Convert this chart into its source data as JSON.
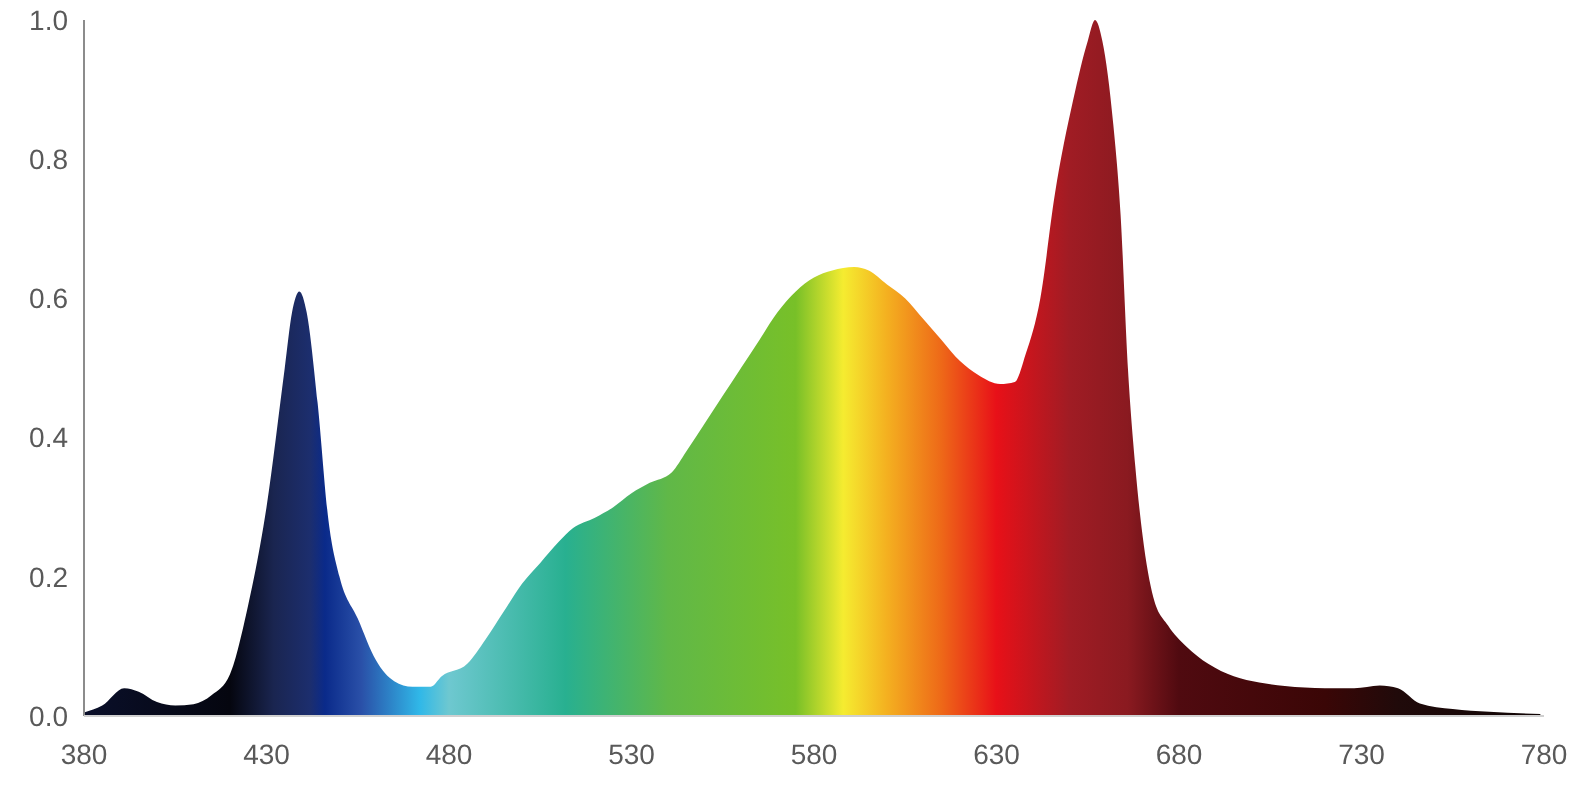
{
  "chart_data": {
    "type": "area",
    "x": [
      380,
      385,
      391,
      395,
      400,
      405,
      410,
      415,
      420,
      425,
      430,
      435,
      437,
      439,
      441,
      444,
      447,
      450,
      455,
      460,
      465,
      470,
      475,
      478,
      485,
      490,
      495,
      500,
      505,
      510,
      514,
      520,
      525,
      530,
      535,
      541,
      545,
      550,
      555,
      560,
      565,
      570,
      575,
      580,
      585,
      591,
      595,
      600,
      605,
      610,
      615,
      620,
      625,
      631,
      635,
      638,
      642,
      646,
      651,
      655,
      657,
      659,
      662,
      664,
      666,
      668,
      670,
      673,
      677,
      682,
      688,
      695,
      702,
      709,
      720,
      728,
      735,
      740,
      746,
      755,
      765,
      779
    ],
    "series": [
      {
        "values": [
          0.005,
          0.015,
          0.04,
          0.035,
          0.02,
          0.015,
          0.017,
          0.03,
          0.06,
          0.16,
          0.3,
          0.5,
          0.58,
          0.61,
          0.58,
          0.45,
          0.28,
          0.2,
          0.14,
          0.08,
          0.05,
          0.042,
          0.042,
          0.057,
          0.075,
          0.11,
          0.15,
          0.19,
          0.22,
          0.25,
          0.27,
          0.285,
          0.3,
          0.32,
          0.335,
          0.35,
          0.38,
          0.42,
          0.46,
          0.5,
          0.54,
          0.58,
          0.61,
          0.63,
          0.64,
          0.645,
          0.64,
          0.62,
          0.6,
          0.57,
          0.54,
          0.51,
          0.49,
          0.477,
          0.48,
          0.52,
          0.6,
          0.75,
          0.885,
          0.97,
          1.0,
          0.97,
          0.85,
          0.72,
          0.5,
          0.36,
          0.26,
          0.17,
          0.13,
          0.1,
          0.075,
          0.057,
          0.048,
          0.043,
          0.04,
          0.04,
          0.044,
          0.04,
          0.018,
          0.01,
          0.006,
          0.003
        ]
      }
    ],
    "xlim": [
      380,
      780
    ],
    "xticks": [
      380,
      430,
      480,
      530,
      580,
      630,
      680,
      730,
      780
    ],
    "ylim": [
      0,
      1
    ],
    "yticks": [
      {
        "value": 0,
        "label": "0.0"
      },
      {
        "value": 0.2,
        "label": "0.2"
      },
      {
        "value": 0.4,
        "label": "0.4"
      },
      {
        "value": 0.6,
        "label": "0.6"
      },
      {
        "value": 0.8,
        "label": "0.8"
      },
      {
        "value": 1,
        "label": "1.0"
      }
    ],
    "grid": false
  }
}
